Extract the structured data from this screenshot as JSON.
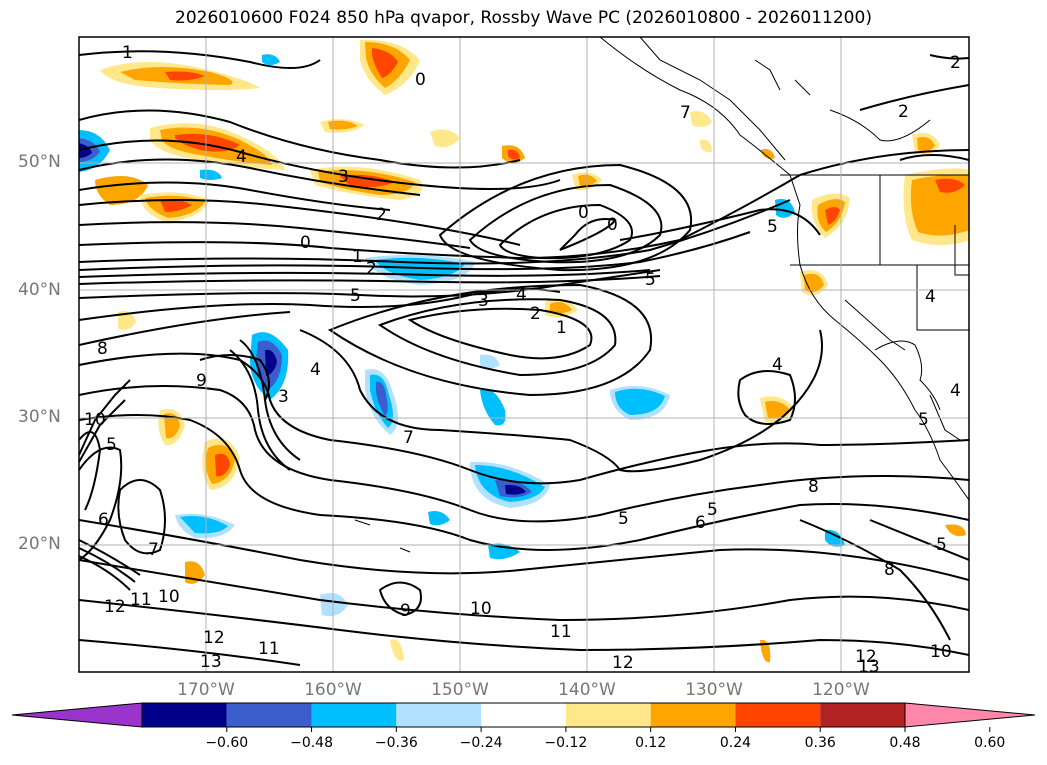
{
  "title": "2026010600 F024 850 hPa qvapor, Rossby Wave PC (2026010800 - 2026011200)",
  "axes": {
    "lat_labels": [
      "50°N",
      "40°N",
      "30°N",
      "20°N"
    ],
    "lon_labels": [
      "170°W",
      "160°W",
      "150°W",
      "140°W",
      "130°W",
      "120°W"
    ]
  },
  "colorbar": {
    "ticks": [
      "−0.60",
      "−0.48",
      "−0.36",
      "−0.24",
      "−0.12",
      "0.12",
      "0.24",
      "0.36",
      "0.48",
      "0.60"
    ],
    "colors": [
      "#9a35cc",
      "#00008b",
      "#3a5fcd",
      "#00bfff",
      "#b0e2ff",
      "#ffffff",
      "#ffe78a",
      "#ffa500",
      "#ff4500",
      "#b22222",
      "#ff88aa"
    ]
  },
  "contour_labels": [
    "1",
    "0",
    "2",
    "2",
    "4",
    "3",
    "2",
    "0",
    "0",
    "0",
    "1",
    "2",
    "4",
    "3",
    "2",
    "1",
    "5",
    "5",
    "5",
    "4",
    "8",
    "9",
    "3",
    "4",
    "7",
    "10",
    "5",
    "6",
    "7",
    "5",
    "6",
    "5",
    "8",
    "8",
    "5",
    "11",
    "10",
    "12",
    "13",
    "11",
    "12",
    "9",
    "10",
    "11",
    "12",
    "12",
    "13",
    "10",
    "4",
    "5",
    "4",
    "7"
  ],
  "map_style": {
    "land_outline": "#000000",
    "gridline": "#b0b0b0",
    "contour": "#000000"
  }
}
